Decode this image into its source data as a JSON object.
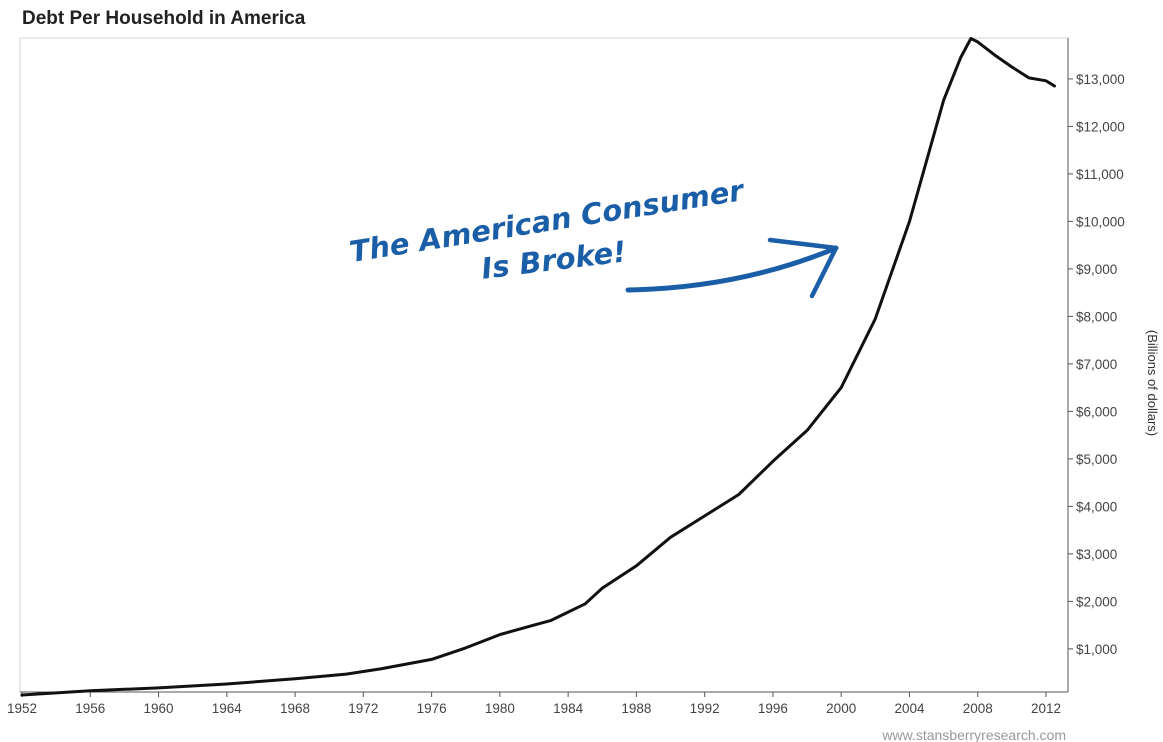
{
  "chart_data": {
    "type": "line",
    "title": "Debt Per Household in America",
    "ylabel": "(Billions of dollars)",
    "source": "www.stansberryresearch.com",
    "annotation": [
      "The American Consumer",
      "Is Broke!"
    ],
    "annotation_color": "#1a5ea8",
    "line_color": "#111111",
    "xlim": [
      1952,
      2013
    ],
    "ylim": [
      0,
      14000
    ],
    "x_ticks": [
      1952,
      1956,
      1960,
      1964,
      1968,
      1972,
      1976,
      1980,
      1984,
      1988,
      1992,
      1996,
      2000,
      2004,
      2008,
      2012
    ],
    "y_ticks": [
      1000,
      2000,
      3000,
      4000,
      5000,
      6000,
      7000,
      8000,
      9000,
      10000,
      11000,
      12000,
      13000
    ],
    "y_tick_labels": [
      "$1,000",
      "$2,000",
      "$3,000",
      "$4,000",
      "$5,000",
      "$6,000",
      "$7,000",
      "$8,000",
      "$9,000",
      "$10,000",
      "$11,000",
      "$12,000",
      "$13,000"
    ],
    "axis_position": "right",
    "grid": false,
    "series": [
      {
        "x": [
          1952,
          1956,
          1960,
          1964,
          1968,
          1971,
          1973,
          1976,
          1978,
          1980,
          1982,
          1983,
          1985,
          1986,
          1988,
          1990,
          1992,
          1994,
          1996,
          1998,
          2000,
          2002,
          2004,
          2006,
          2007,
          2007.6,
          2008,
          2009,
          2010,
          2011,
          2012,
          2012.5
        ],
        "y": [
          30,
          120,
          180,
          260,
          370,
          470,
          580,
          780,
          1020,
          1300,
          1500,
          1600,
          1950,
          2280,
          2750,
          3350,
          3800,
          4250,
          4950,
          5600,
          6500,
          7950,
          10000,
          12550,
          13450,
          13850,
          13780,
          13500,
          13250,
          13020,
          12960,
          12850
        ]
      }
    ]
  }
}
